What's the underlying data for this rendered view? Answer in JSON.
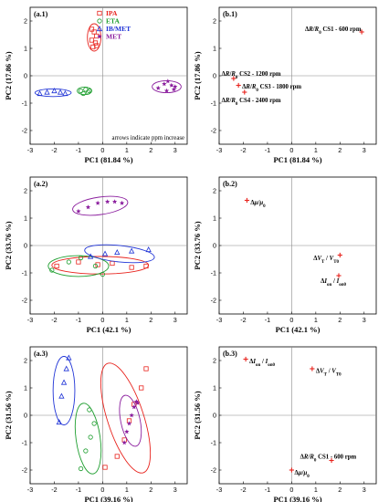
{
  "colors": {
    "IPA": "#e8231d",
    "ETA": "#1e9e2f",
    "IB/MET": "#1f33d6",
    "MET": "#8b1e9e",
    "loading": "#e8231d"
  },
  "legend": [
    {
      "name": "IPA",
      "marker": "square"
    },
    {
      "name": "ETA",
      "marker": "circle"
    },
    {
      "name": "IB/MET",
      "marker": "triangle"
    },
    {
      "name": "MET",
      "marker": "star"
    }
  ],
  "chart_data": [
    {
      "id": "a1",
      "type": "scatter",
      "label": "(a.1)",
      "xlabel": "PC1 (81.84 %)",
      "ylabel": "PC2 (17.86 %)",
      "xlim": [
        -3,
        3.5
      ],
      "ylim": [
        -2.5,
        2.5
      ],
      "xticks": [
        -3,
        -2,
        -1,
        0,
        1,
        2,
        3
      ],
      "yticks": [
        -2,
        -1,
        0,
        1,
        2
      ],
      "note": "arrows indicate ppm increase",
      "show_legend": true,
      "series": [
        {
          "name": "IPA",
          "x": [
            -0.45,
            -0.35,
            -0.25,
            -0.45,
            -0.3,
            -0.4,
            -0.25
          ],
          "y": [
            1.7,
            1.6,
            1.45,
            1.3,
            1.2,
            1.05,
            1.1
          ],
          "ellipse": {
            "cx": -0.35,
            "cy": 1.4,
            "rx": 0.28,
            "ry": 0.5,
            "rot": 0
          }
        },
        {
          "name": "ETA",
          "x": [
            -0.9,
            -0.7,
            -0.55,
            -0.8,
            -0.6
          ],
          "y": [
            -0.55,
            -0.5,
            -0.55,
            -0.65,
            -0.6
          ],
          "ellipse": {
            "cx": -0.75,
            "cy": -0.55,
            "rx": 0.3,
            "ry": 0.14,
            "rot": 0
          }
        },
        {
          "name": "IB/MET",
          "x": [
            -2.6,
            -2.3,
            -2.0,
            -1.75,
            -1.55
          ],
          "y": [
            -0.65,
            -0.6,
            -0.55,
            -0.6,
            -0.65
          ],
          "ellipse": {
            "cx": -2.05,
            "cy": -0.62,
            "rx": 0.75,
            "ry": 0.14,
            "rot": 0
          }
        },
        {
          "name": "MET",
          "x": [
            2.3,
            2.55,
            2.7,
            2.85,
            2.95,
            3.0,
            2.65
          ],
          "y": [
            -0.45,
            -0.3,
            -0.2,
            -0.35,
            -0.5,
            -0.4,
            -0.55
          ],
          "ellipse": {
            "cx": 2.65,
            "cy": -0.4,
            "rx": 0.6,
            "ry": 0.22,
            "rot": 0
          }
        }
      ]
    },
    {
      "id": "b1",
      "type": "scatter",
      "label": "(b.1)",
      "xlabel": "PC1 (81.84 %)",
      "ylabel": "PC2 (17.86 %)",
      "xlim": [
        -3,
        3.5
      ],
      "ylim": [
        -2.5,
        2.5
      ],
      "xticks": [
        -3,
        -2,
        -1,
        0,
        1,
        2,
        3
      ],
      "yticks": [
        -2,
        -1,
        0,
        1,
        2
      ],
      "loadings": [
        {
          "x": 2.9,
          "y": 1.6,
          "label": "ΔR/R₀ CS1 - 600 rpm",
          "lx": 0.55,
          "ly": 1.72
        },
        {
          "x": -2.4,
          "y": -0.1,
          "label": "ΔR/R₀ CS2 - 1200 rpm",
          "lx": -2.9,
          "ly": 0.08
        },
        {
          "x": -2.2,
          "y": -0.35,
          "label": "ΔR/R₀ CS3 - 1800 rpm",
          "lx": -2.05,
          "ly": -0.38
        },
        {
          "x": -1.95,
          "y": -0.6,
          "label": "ΔR/R₀ CS4 - 2400 rpm",
          "lx": -2.9,
          "ly": -0.88
        }
      ]
    },
    {
      "id": "a2",
      "type": "scatter",
      "label": "(a.2)",
      "xlabel": "PC1 (42.1 %)",
      "ylabel": "PC2 (33.76 %)",
      "xlim": [
        -3,
        3.5
      ],
      "ylim": [
        -2.5,
        2.5
      ],
      "xticks": [
        -3,
        -2,
        -1,
        0,
        1,
        2,
        3
      ],
      "yticks": [
        -2,
        -1,
        0,
        1,
        2
      ],
      "series": [
        {
          "name": "IPA",
          "x": [
            -1.9,
            -1.0,
            -0.2,
            0.4,
            1.2,
            1.8
          ],
          "y": [
            -0.75,
            -0.6,
            -0.7,
            -0.65,
            -0.8,
            -0.75
          ],
          "ellipse": {
            "cx": -0.1,
            "cy": -0.72,
            "rx": 2.0,
            "ry": 0.32,
            "rot": 0
          }
        },
        {
          "name": "ETA",
          "x": [
            -2.1,
            -1.4,
            -0.9,
            -0.3,
            0.0
          ],
          "y": [
            -0.9,
            -0.6,
            -0.45,
            -0.75,
            -1.05
          ],
          "ellipse": {
            "cx": -1.0,
            "cy": -0.75,
            "rx": 1.25,
            "ry": 0.38,
            "rot": 0
          }
        },
        {
          "name": "IB/MET",
          "x": [
            -0.5,
            0.1,
            0.6,
            1.2,
            1.9
          ],
          "y": [
            -0.4,
            -0.3,
            -0.25,
            -0.2,
            -0.15
          ],
          "ellipse": {
            "cx": 0.7,
            "cy": -0.3,
            "rx": 1.45,
            "ry": 0.3,
            "rot": -6
          }
        },
        {
          "name": "MET",
          "x": [
            -1.0,
            -0.6,
            -0.2,
            0.2,
            0.5,
            0.8
          ],
          "y": [
            1.25,
            1.4,
            1.55,
            1.6,
            1.6,
            1.55
          ],
          "ellipse": {
            "cx": -0.1,
            "cy": 1.45,
            "rx": 1.15,
            "ry": 0.32,
            "rot": 8
          }
        }
      ]
    },
    {
      "id": "b2",
      "type": "scatter",
      "label": "(b.2)",
      "xlabel": "PC1 (42.1 %)",
      "ylabel": "PC2 (33.76 %)",
      "xlim": [
        -3,
        3.5
      ],
      "ylim": [
        -2.5,
        2.5
      ],
      "xticks": [
        -3,
        -2,
        -1,
        0,
        1,
        2,
        3
      ],
      "yticks": [
        -2,
        -1,
        0,
        1,
        2
      ],
      "loadings": [
        {
          "x": -1.85,
          "y": 1.65,
          "label": "Δμ/μ₀",
          "lx": -1.7,
          "ly": 1.58
        },
        {
          "x": 2.0,
          "y": -0.35,
          "label": "ΔV_T / V_T0",
          "lx": 0.9,
          "ly": -0.45
        },
        {
          "x": 1.95,
          "y": -1.1,
          "label": "ΔI_on / I_on0",
          "lx": 1.2,
          "ly": -1.28
        }
      ]
    },
    {
      "id": "a3",
      "type": "scatter",
      "label": "(a.3)",
      "xlabel": "PC1 (39.16 %)",
      "ylabel": "PC2 (31.56 %)",
      "xlim": [
        -3,
        3.5
      ],
      "ylim": [
        -2.5,
        2.5
      ],
      "xticks": [
        -3,
        -2,
        -1,
        0,
        1,
        2,
        3
      ],
      "yticks": [
        -2,
        -1,
        0,
        1,
        2
      ],
      "series": [
        {
          "name": "IPA",
          "x": [
            0.1,
            0.6,
            0.9,
            1.1,
            1.3,
            1.6,
            1.8
          ],
          "y": [
            -1.9,
            -1.5,
            -0.9,
            -0.2,
            0.4,
            1.0,
            1.7
          ],
          "ellipse": {
            "cx": 0.95,
            "cy": -0.1,
            "rx": 0.75,
            "ry": 2.1,
            "rot": 18
          }
        },
        {
          "name": "ETA",
          "x": [
            -0.9,
            -0.7,
            -0.5,
            -0.35,
            -0.55
          ],
          "y": [
            -1.95,
            -1.3,
            -0.8,
            -0.3,
            0.2
          ],
          "ellipse": {
            "cx": -0.6,
            "cy": -0.85,
            "rx": 0.5,
            "ry": 1.3,
            "rot": 8
          }
        },
        {
          "name": "IB/MET",
          "x": [
            -1.8,
            -1.7,
            -1.6,
            -1.5,
            -1.4
          ],
          "y": [
            -0.25,
            0.7,
            1.2,
            1.7,
            2.1
          ],
          "ellipse": {
            "cx": -1.6,
            "cy": 0.9,
            "rx": 0.45,
            "ry": 1.25,
            "rot": 0
          }
        },
        {
          "name": "MET",
          "x": [
            0.9,
            1.0,
            1.1,
            1.2,
            1.3,
            1.4,
            1.45
          ],
          "y": [
            -1.0,
            -0.6,
            -0.3,
            0.0,
            0.3,
            0.5,
            0.45
          ],
          "ellipse": {
            "cx": 1.15,
            "cy": -0.2,
            "rx": 0.4,
            "ry": 0.95,
            "rot": 12
          }
        }
      ]
    },
    {
      "id": "b3",
      "type": "scatter",
      "label": "(b.3)",
      "xlabel": "PC1 (39.16 %)",
      "ylabel": "PC2 (31.56 %)",
      "xlim": [
        -3,
        3.5
      ],
      "ylim": [
        -2.5,
        2.5
      ],
      "xticks": [
        -3,
        -2,
        -1,
        0,
        1,
        2,
        3
      ],
      "yticks": [
        -2,
        -1,
        0,
        1,
        2
      ],
      "loadings": [
        {
          "x": -1.9,
          "y": 2.05,
          "label": "ΔI_on / I_on0",
          "lx": -1.75,
          "ly": 1.98
        },
        {
          "x": 0.85,
          "y": 1.7,
          "label": "ΔV_T / V_T0",
          "lx": 1.0,
          "ly": 1.63
        },
        {
          "x": 1.65,
          "y": -1.65,
          "label": "ΔR/R₀ CS1 - 600 rpm",
          "lx": 0.35,
          "ly": -1.5
        },
        {
          "x": 0.0,
          "y": -2.0,
          "label": "Δμ/μ₀",
          "lx": 0.12,
          "ly": -2.08
        }
      ]
    }
  ]
}
